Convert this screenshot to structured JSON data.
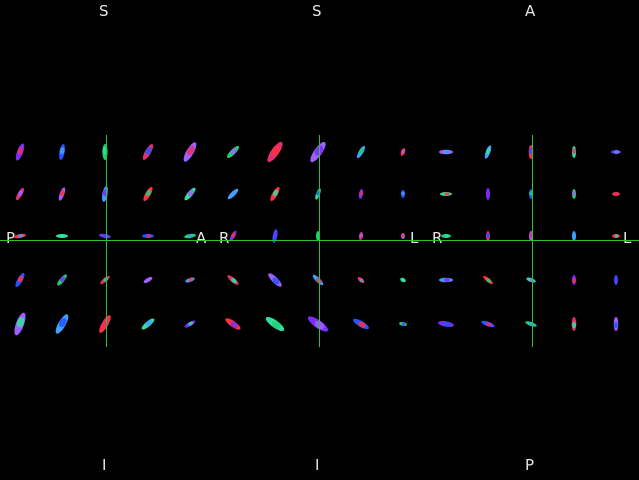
{
  "view": {
    "title": "",
    "crosshair_color": "#2fbf2f",
    "label_color": "#e6e6e6",
    "panels": [
      {
        "id": "coronal",
        "top": "S",
        "bottom": "I",
        "left": "P",
        "right": "A"
      },
      {
        "id": "sagittal",
        "top": "S",
        "bottom": "I",
        "left": "R",
        "right": "L"
      },
      {
        "id": "axial",
        "top": "A",
        "bottom": "P",
        "left": "R",
        "right": "L"
      }
    ]
  }
}
